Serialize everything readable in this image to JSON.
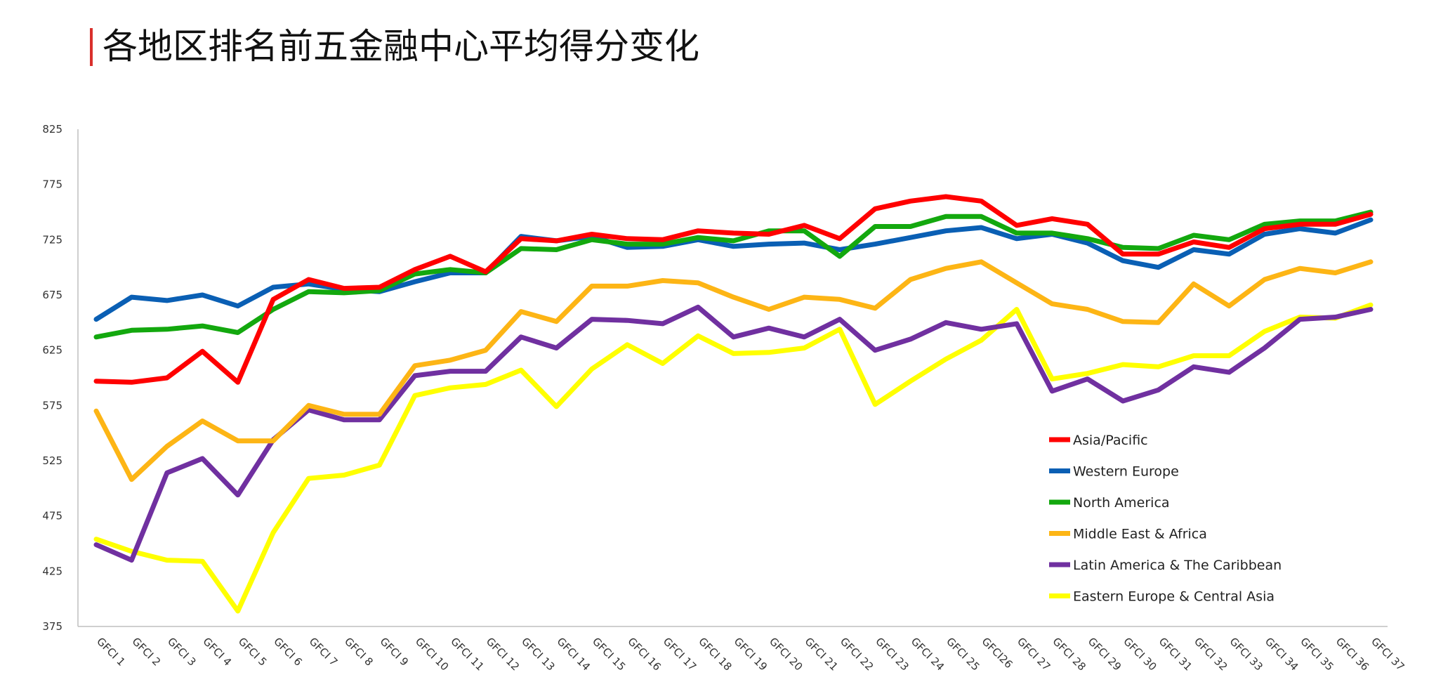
{
  "page": {
    "title": "各地区排名前五金融中心平均得分变化"
  },
  "chart_data": {
    "type": "line",
    "title": "各地区排名前五金融中心平均得分变化",
    "xlabel": "",
    "ylabel": "",
    "ylim": [
      375,
      825
    ],
    "yticks": [
      825,
      775,
      725,
      675,
      625,
      575,
      525,
      475,
      425,
      375
    ],
    "grid": false,
    "legend": "bottom-right",
    "x": [
      "GFCI 1",
      "GFCI 2",
      "GFCI 3",
      "GFCI 4",
      "GFCI 5",
      "GFCI 6",
      "GFCI 7",
      "GFCI 8",
      "GFCI 9",
      "GFCI 10",
      "GFCI 11",
      "GFCI 12",
      "GFCI 13",
      "GFCI 14",
      "GFCI 15",
      "GFCI 16",
      "GFCI 17",
      "GFCI 18",
      "GFCI 19",
      "GFCI 20",
      "GFCI 21",
      "GFCI 22",
      "GFCI 23",
      "GFCI 24",
      "GFCI 25",
      "GFCI26",
      "GFCI 27",
      "GFCI 28",
      "GFCI 29",
      "GFCI 30",
      "GFCI 31",
      "GFCI 32",
      "GFCI 33",
      "GFCI 34",
      "GFCI 35",
      "GFCI 36",
      "GFCI 37"
    ],
    "series": [
      {
        "name": "Asia/Pacific",
        "color": "#ff0000",
        "values": [
          597,
          596,
          600,
          624,
          596,
          671,
          689,
          681,
          682,
          698,
          710,
          696,
          726,
          724,
          730,
          726,
          725,
          733,
          731,
          730,
          738,
          726,
          753,
          760,
          764,
          760,
          738,
          744,
          739,
          712,
          712,
          723,
          718,
          735,
          739,
          739,
          748
        ]
      },
      {
        "name": "Western Europe",
        "color": "#0a5fb4",
        "values": [
          653,
          673,
          670,
          675,
          665,
          682,
          685,
          680,
          678,
          687,
          695,
          695,
          728,
          724,
          728,
          718,
          719,
          725,
          719,
          721,
          722,
          716,
          721,
          727,
          733,
          736,
          726,
          730,
          722,
          706,
          700,
          716,
          712,
          730,
          735,
          731,
          743
        ]
      },
      {
        "name": "North America",
        "color": "#13a80e",
        "values": [
          637,
          643,
          644,
          647,
          641,
          662,
          678,
          677,
          679,
          694,
          698,
          695,
          717,
          716,
          725,
          721,
          721,
          727,
          724,
          733,
          733,
          710,
          737,
          737,
          746,
          746,
          731,
          731,
          726,
          718,
          717,
          729,
          725,
          739,
          742,
          742,
          750
        ]
      },
      {
        "name": "Middle East & Africa",
        "color": "#fdb515",
        "values": [
          570,
          508,
          538,
          561,
          543,
          543,
          575,
          567,
          567,
          611,
          616,
          625,
          660,
          651,
          683,
          683,
          688,
          686,
          673,
          662,
          673,
          671,
          663,
          689,
          699,
          705,
          686,
          667,
          662,
          651,
          650,
          685,
          665,
          689,
          699,
          695,
          705
        ]
      },
      {
        "name": "Latin America & The Caribbean",
        "color": "#7030a0",
        "values": [
          449,
          435,
          514,
          527,
          494,
          544,
          571,
          562,
          562,
          602,
          606,
          606,
          637,
          627,
          653,
          652,
          649,
          664,
          637,
          645,
          637,
          653,
          625,
          635,
          650,
          644,
          649,
          588,
          599,
          579,
          589,
          610,
          605,
          627,
          653,
          655,
          662
        ]
      },
      {
        "name": "Eastern Europe & Central Asia",
        "color": "#ffff00",
        "values": [
          454,
          443,
          435,
          434,
          389,
          460,
          509,
          512,
          521,
          584,
          591,
          594,
          607,
          574,
          608,
          630,
          613,
          638,
          622,
          623,
          627,
          644,
          576,
          597,
          617,
          634,
          662,
          599,
          604,
          612,
          610,
          620,
          620,
          642,
          655,
          654,
          666
        ]
      }
    ]
  }
}
